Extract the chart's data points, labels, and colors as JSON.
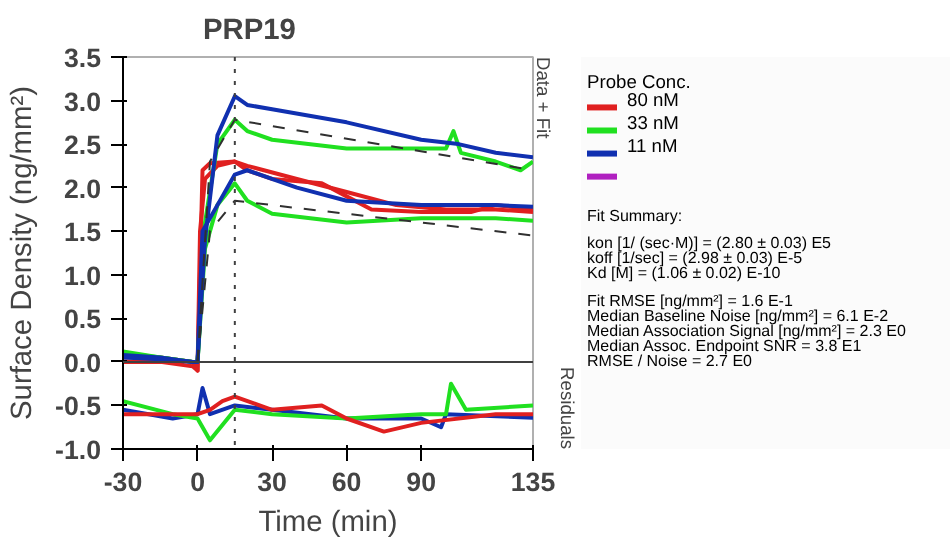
{
  "chart_data": {
    "type": "line",
    "title": "PRP19",
    "xlabel": "Time (min)",
    "ylabel": "Surface Density (ng/mm²)",
    "legend_title": "Probe Conc.",
    "legend": "right",
    "grid": false,
    "line_style": "solid",
    "marker": "none",
    "xlim": [
      -30,
      135
    ],
    "xticks": [
      -30,
      0,
      30,
      60,
      90,
      135
    ],
    "ylim": [
      -1.0,
      3.5
    ],
    "yticks": [
      {
        "value": -1,
        "label": "-1.0"
      },
      {
        "value": -0.5,
        "label": "-0.5"
      },
      {
        "value": 0,
        "label": "0.0"
      },
      {
        "value": 0.5,
        "label": "0.5"
      },
      {
        "value": 1,
        "label": "1.0"
      },
      {
        "value": 1.5,
        "label": "1.5"
      },
      {
        "value": 2,
        "label": "2.0"
      },
      {
        "value": 2.5,
        "label": "2.5"
      },
      {
        "value": 3,
        "label": "3.0"
      },
      {
        "value": 3.5,
        "label": "3.5"
      }
    ],
    "ref_lines": [
      {
        "axis": "x",
        "value": 15,
        "color": "#404040",
        "line_style": "dotted"
      },
      {
        "axis": "y",
        "value": 0,
        "color": "#404040"
      }
    ],
    "annotations": [
      "Data + Fit",
      "Residuals",
      "Fit Summary:",
      "kon  [1/ (sec·M)]  =   (2.80 ± 0.03) E5",
      "koff  [1/sec]  =   (2.98 ± 0.03) E-5",
      "Kd  [M]  =   (1.06 ± 0.02) E-10",
      "Fit RMSE [ng/mm²]  =   1.6 E-1",
      "Median Baseline Noise [ng/mm²]  =   6.1 E-2",
      "Median Association Signal [ng/mm²]  =   2.3 E0",
      "Median Assoc. Endpoint SNR  =   3.8 E1",
      "RMSE / Noise  =   2.7 E0"
    ],
    "series": [
      {
        "name": "80 nM",
        "color": "#e02020",
        "x": [
          -30,
          -15,
          -2,
          0,
          2,
          5,
          15,
          20,
          30,
          50,
          60,
          70,
          90,
          110,
          120,
          135
        ],
        "values": [
          0.05,
          0.05,
          0.0,
          -0.1,
          2.2,
          2.28,
          2.3,
          2.2,
          2.1,
          2.05,
          1.9,
          1.75,
          1.72,
          1.72,
          1.8,
          1.75
        ]
      },
      {
        "color": "#e02020",
        "x": [
          -30,
          -15,
          -2,
          0,
          1,
          3,
          8,
          15,
          20,
          40,
          60,
          80,
          100,
          120,
          135
        ],
        "values": [
          0.0,
          0.0,
          -0.05,
          -0.1,
          1.5,
          2.1,
          2.25,
          2.3,
          2.25,
          2.1,
          1.95,
          1.8,
          1.75,
          1.75,
          1.72
        ]
      },
      {
        "name": "33 nM",
        "color": "#20e020",
        "x": [
          -30,
          -15,
          -2,
          0,
          3,
          8,
          15,
          20,
          30,
          60,
          90,
          100,
          103,
          106,
          120,
          130,
          135
        ],
        "values": [
          0.12,
          0.05,
          0.0,
          0.0,
          1.6,
          2.5,
          2.78,
          2.65,
          2.55,
          2.45,
          2.45,
          2.45,
          2.65,
          2.4,
          2.3,
          2.2,
          2.3
        ]
      },
      {
        "color": "#20e020",
        "x": [
          -30,
          -15,
          -2,
          0,
          3,
          8,
          15,
          20,
          30,
          60,
          90,
          120,
          135
        ],
        "values": [
          0.1,
          0.05,
          0.0,
          0.0,
          1.3,
          1.8,
          2.05,
          1.85,
          1.7,
          1.6,
          1.65,
          1.65,
          1.62
        ]
      },
      {
        "name": "11 nM",
        "color": "#1030b0",
        "x": [
          -30,
          -15,
          -2,
          0,
          3,
          8,
          15,
          20,
          30,
          60,
          90,
          105,
          120,
          135
        ],
        "values": [
          0.08,
          0.05,
          0.0,
          0.0,
          1.4,
          2.6,
          3.05,
          2.95,
          2.9,
          2.75,
          2.55,
          2.5,
          2.4,
          2.35
        ]
      },
      {
        "color": "#1030b0",
        "x": [
          -30,
          -15,
          -2,
          0,
          2,
          10,
          15,
          20,
          40,
          60,
          90,
          120,
          135
        ],
        "values": [
          0.05,
          0.03,
          0.0,
          0.0,
          1.5,
          1.9,
          2.15,
          2.2,
          2.0,
          1.85,
          1.8,
          1.8,
          1.78
        ]
      },
      {
        "color": "#b020c0"
      },
      {
        "color": "#303030",
        "line_style": "dashed",
        "x": [
          0,
          5,
          15,
          135
        ],
        "values": [
          0.0,
          2.3,
          2.78,
          2.2
        ]
      },
      {
        "color": "#303030",
        "line_style": "dashed",
        "x": [
          0,
          5,
          15,
          135
        ],
        "values": [
          0.0,
          1.5,
          1.85,
          1.45
        ]
      },
      {
        "color": "#1030b0",
        "x": [
          -30,
          -10,
          0,
          2,
          5,
          15,
          30,
          60,
          90,
          98,
          100,
          135
        ],
        "values": [
          -0.55,
          -0.65,
          -0.6,
          -0.3,
          -0.6,
          -0.5,
          -0.55,
          -0.65,
          -0.65,
          -0.75,
          -0.6,
          -0.64
        ]
      },
      {
        "color": "#20e020",
        "x": [
          -30,
          -10,
          0,
          5,
          15,
          30,
          60,
          90,
          100,
          102,
          105,
          108,
          135
        ],
        "values": [
          -0.45,
          -0.6,
          -0.65,
          -0.9,
          -0.55,
          -0.6,
          -0.65,
          -0.6,
          -0.6,
          -0.25,
          -0.4,
          -0.55,
          -0.5
        ]
      },
      {
        "color": "#e02020",
        "x": [
          -30,
          0,
          5,
          10,
          15,
          30,
          50,
          60,
          75,
          90,
          120,
          135
        ],
        "values": [
          -0.6,
          -0.6,
          -0.55,
          -0.45,
          -0.4,
          -0.55,
          -0.5,
          -0.65,
          -0.8,
          -0.7,
          -0.6,
          -0.6
        ]
      }
    ]
  }
}
